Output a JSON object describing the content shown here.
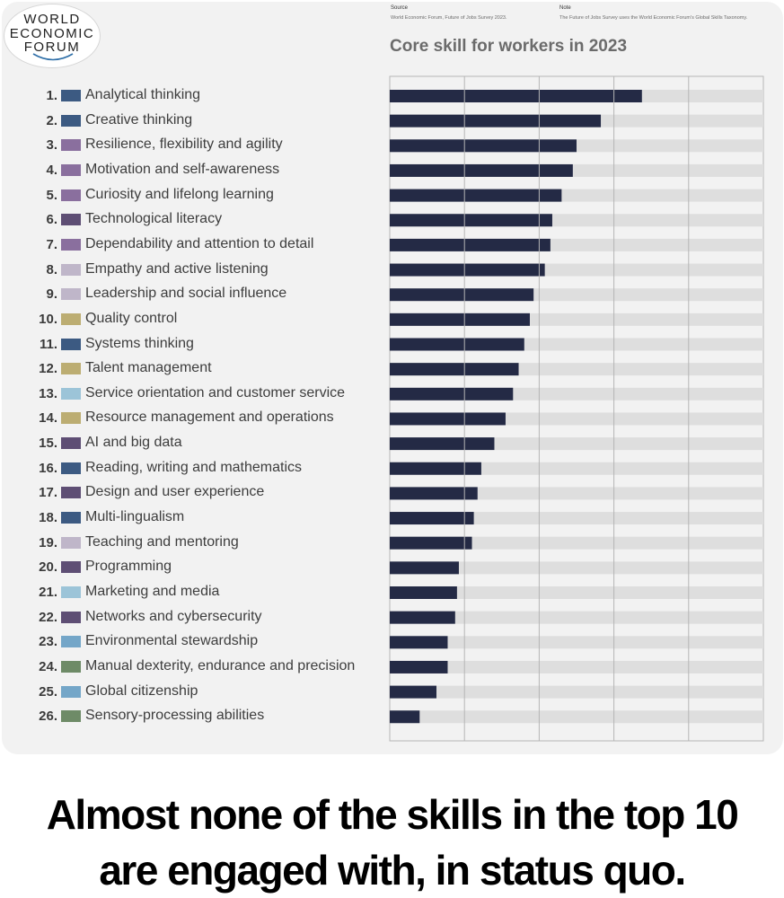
{
  "logo": {
    "lines": [
      "WORLD",
      "ECONOMIC",
      "FORUM"
    ]
  },
  "source": {
    "heading": "Source",
    "text": "World Economic Forum, Future of Jobs Survey 2023."
  },
  "note": {
    "heading": "Note",
    "text": "The Future of Jobs Survey uses the World Economic Forum's Global Skills Taxonomy."
  },
  "headline": {
    "line1": "Almost none of the skills in the top 10",
    "line2": "are engaged with, in status quo."
  },
  "colors": {
    "bar": "#242a45",
    "track": "#dedede",
    "grid": "#b5b5b5"
  },
  "chart_data": {
    "type": "bar",
    "orientation": "horizontal",
    "title": "Core skill for workers in 2023",
    "xlim": [
      0,
      100
    ],
    "grid": true,
    "categories": [
      "Analytical thinking",
      "Creative thinking",
      "Resilience, flexibility and agility",
      "Motivation and self-awareness",
      "Curiosity and lifelong learning",
      "Technological literacy",
      "Dependability and attention to detail",
      "Empathy and active listening",
      "Leadership and social influence",
      "Quality control",
      "Systems thinking",
      "Talent management",
      "Service orientation and customer service",
      "Resource management and operations",
      "AI and big data",
      "Reading, writing and mathematics",
      "Design and user experience",
      "Multi-lingualism",
      "Teaching and mentoring",
      "Programming",
      "Marketing and media",
      "Networks and cybersecurity",
      "Environmental stewardship",
      "Manual dexterity, endurance and precision",
      "Global citizenship",
      "Sensory-processing abilities"
    ],
    "ranks": [
      "1.",
      "2.",
      "3.",
      "4.",
      "5.",
      "6.",
      "7.",
      "8.",
      "9.",
      "10.",
      "11.",
      "12.",
      "13.",
      "14.",
      "15.",
      "16.",
      "17.",
      "18.",
      "19.",
      "20.",
      "21.",
      "22.",
      "23.",
      "24.",
      "25.",
      "26."
    ],
    "values": [
      67.5,
      56.5,
      50,
      49,
      46,
      43.5,
      43,
      41.5,
      38.5,
      37.5,
      36,
      34.5,
      33,
      31,
      28,
      24.5,
      23.5,
      22.5,
      22,
      18.5,
      18,
      17.5,
      15.5,
      15.5,
      12.5,
      8
    ],
    "swatch_colors": [
      "#3c5a82",
      "#3c5a82",
      "#8a6f9e",
      "#8a6f9e",
      "#8a6f9e",
      "#5e4e74",
      "#8a6f9e",
      "#bfb6c9",
      "#bfb6c9",
      "#bcad72",
      "#3c5a82",
      "#bcad72",
      "#9cc4d8",
      "#bcad72",
      "#5e4e74",
      "#3c5a82",
      "#5e4e74",
      "#3c5a82",
      "#bfb6c9",
      "#5e4e74",
      "#9cc4d8",
      "#5e4e74",
      "#74a6c8",
      "#6e8b67",
      "#74a6c8",
      "#6e8b67"
    ]
  }
}
